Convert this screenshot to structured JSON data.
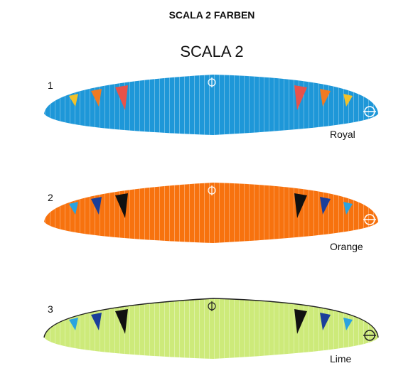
{
  "header": {
    "title": "SCALA 2 FARBEN",
    "subtitle": "SCALA 2"
  },
  "wings": [
    {
      "number": "1",
      "name": "Royal"
    },
    {
      "number": "2",
      "name": "Orange"
    },
    {
      "number": "3",
      "name": "Lime"
    }
  ]
}
